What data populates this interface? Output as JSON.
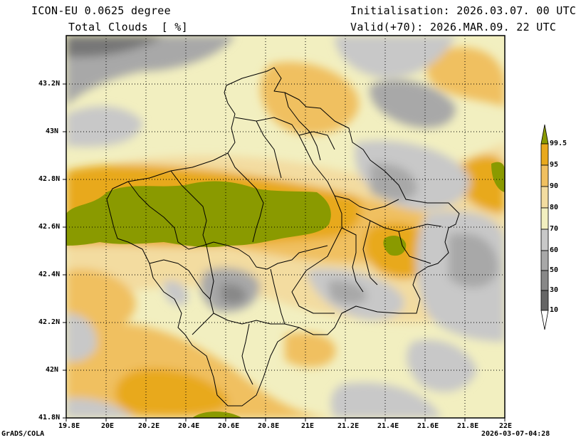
{
  "header": {
    "model": "ICON-EU 0.0625 degree",
    "field": "Total Clouds  [ %]",
    "initialisation": "Initialisation: 2026.03.07. 00 UTC",
    "valid": "Valid(+70): 2026.MAR.09. 22 UTC"
  },
  "footer": {
    "credit": "GrADS/COLA",
    "timestamp": "2026-03-07-04:28"
  },
  "axes": {
    "lon_labels": [
      "19.8E",
      "20E",
      "20.2E",
      "20.4E",
      "20.6E",
      "20.8E",
      "21E",
      "21.2E",
      "21.4E",
      "21.6E",
      "21.8E",
      "22E"
    ],
    "lat_labels": [
      "43.2N",
      "43N",
      "42.8N",
      "42.6N",
      "42.4N",
      "42.2N",
      "42N",
      "41.8N"
    ],
    "lon_range": [
      19.8,
      22.0
    ],
    "lat_range": [
      41.8,
      43.4
    ]
  },
  "colorbar": {
    "levels": [
      "99.5",
      "95",
      "90",
      "80",
      "70",
      "60",
      "50",
      "30",
      "10"
    ],
    "colors": [
      "#8a9a00",
      "#e8a91c",
      "#f0c060",
      "#f3dca0",
      "#f2efc0",
      "#c8c8c8",
      "#a8a8a8",
      "#888888",
      "#666666"
    ],
    "top_color": "#8a9a00",
    "bottom_color": "#ffffff"
  },
  "legend_colors": {
    "map_background": "#f2efc0",
    "gridline": "#000000",
    "border_line": "#000000"
  }
}
